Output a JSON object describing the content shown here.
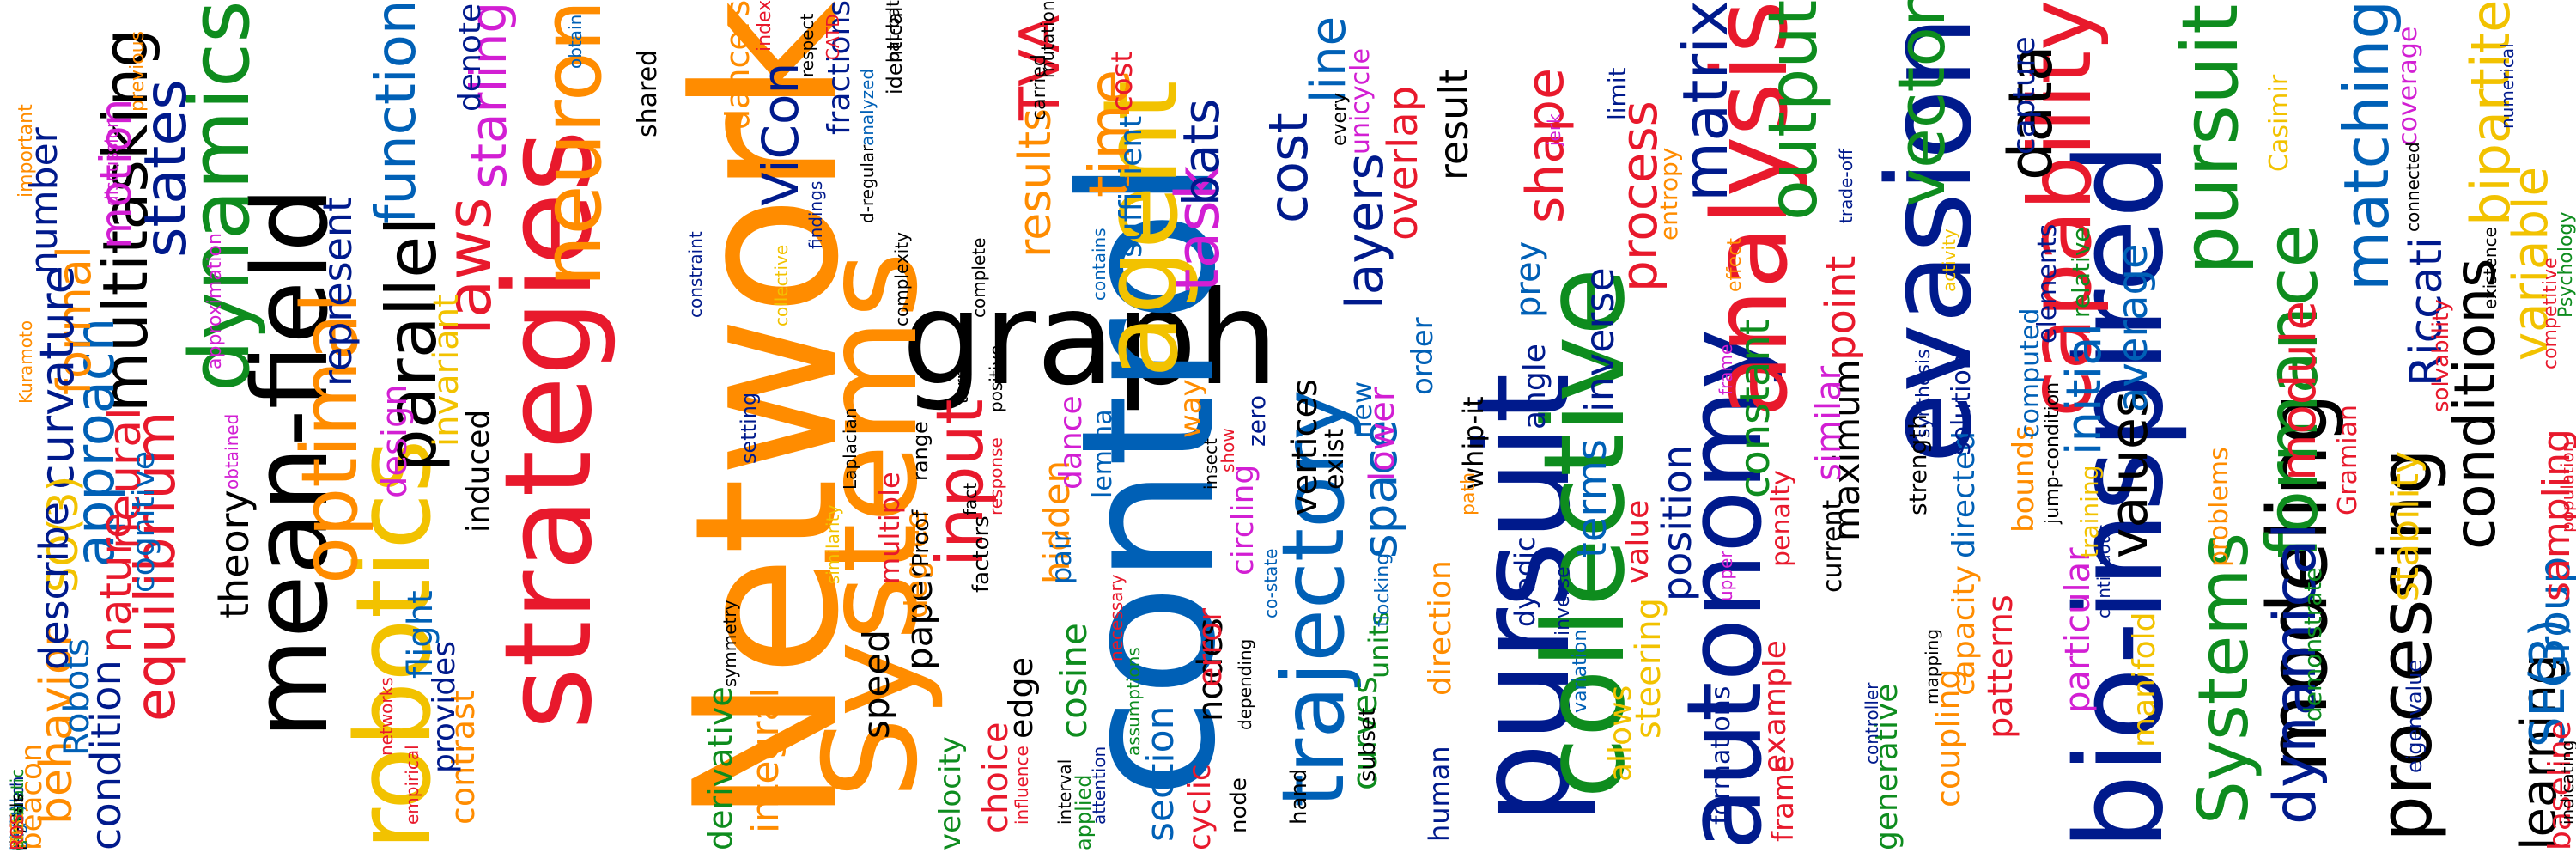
{
  "palette": {
    "black": "#000000",
    "navy": "#001a8c",
    "blue": "#0060b6",
    "green": "#0e8c1e",
    "red": "#e8192c",
    "orange": "#ff8c00",
    "yellow": "#f2c200",
    "magenta": "#d21fd3"
  },
  "words": [
    {
      "text": "Network",
      "color": "orange"
    },
    {
      "text": "graph",
      "color": "black"
    },
    {
      "text": "control",
      "color": "blue"
    },
    {
      "text": "Systems",
      "color": "orange"
    },
    {
      "text": "evasion",
      "color": "navy"
    },
    {
      "text": "pursuit",
      "color": "navy"
    },
    {
      "text": "collective",
      "color": "green"
    },
    {
      "text": "strategies",
      "color": "red"
    },
    {
      "text": "robotics",
      "color": "yellow"
    },
    {
      "text": "mean-field",
      "color": "black"
    },
    {
      "text": "bio-inspired",
      "color": "navy"
    },
    {
      "text": "autonomy",
      "color": "navy"
    },
    {
      "text": "trajectory",
      "color": "blue"
    },
    {
      "text": "agent",
      "color": "yellow"
    },
    {
      "text": "analysis",
      "color": "red"
    },
    {
      "text": "capability",
      "color": "red"
    },
    {
      "text": "dynamics",
      "color": "green"
    },
    {
      "text": "neuron",
      "color": "orange"
    },
    {
      "text": "modeling",
      "color": "black"
    },
    {
      "text": "processing",
      "color": "black"
    },
    {
      "text": "optimal",
      "color": "orange"
    },
    {
      "text": "parallel",
      "color": "black"
    },
    {
      "text": "multitasking",
      "color": "black"
    },
    {
      "text": "states",
      "color": "navy"
    },
    {
      "text": "approach",
      "color": "blue"
    },
    {
      "text": "equilibrium",
      "color": "red"
    },
    {
      "text": "laws",
      "color": "red"
    },
    {
      "text": "input",
      "color": "red"
    },
    {
      "text": "task",
      "color": "magenta"
    },
    {
      "text": "matrix",
      "color": "navy"
    },
    {
      "text": "output",
      "color": "green"
    },
    {
      "text": "vector",
      "color": "green"
    },
    {
      "text": "data",
      "color": "black"
    },
    {
      "text": "pursuit",
      "color": "green"
    },
    {
      "text": "formance",
      "color": "green"
    },
    {
      "text": "matching",
      "color": "blue"
    },
    {
      "text": "bipartite",
      "color": "yellow"
    },
    {
      "text": "variable",
      "color": "yellow"
    },
    {
      "text": "conditions",
      "color": "black"
    },
    {
      "text": "Riccati",
      "color": "navy"
    },
    {
      "text": "module",
      "color": "red"
    },
    {
      "text": "Systems",
      "color": "green"
    },
    {
      "text": "dynamical",
      "color": "navy"
    },
    {
      "text": "learning",
      "color": "black"
    },
    {
      "text": "Group",
      "color": "blue"
    },
    {
      "text": "SE(3)",
      "color": "blue"
    },
    {
      "text": "sampling",
      "color": "red"
    },
    {
      "text": "baseline",
      "color": "red"
    },
    {
      "text": "stability",
      "color": "yellow"
    },
    {
      "text": "values",
      "color": "black"
    },
    {
      "text": "initial",
      "color": "blue"
    },
    {
      "text": "average",
      "color": "blue"
    },
    {
      "text": "maximum",
      "color": "black"
    },
    {
      "text": "cost",
      "color": "navy"
    },
    {
      "text": "time",
      "color": "orange"
    },
    {
      "text": "results",
      "color": "orange"
    },
    {
      "text": "ViCon",
      "color": "navy"
    },
    {
      "text": "TVA",
      "color": "red"
    },
    {
      "text": "bats",
      "color": "navy"
    },
    {
      "text": "line",
      "color": "blue"
    },
    {
      "text": "layers",
      "color": "navy"
    },
    {
      "text": "space",
      "color": "blue"
    },
    {
      "text": "terms",
      "color": "blue"
    },
    {
      "text": "inverse",
      "color": "navy"
    },
    {
      "text": "position",
      "color": "navy"
    },
    {
      "text": "constant",
      "color": "green"
    },
    {
      "text": "point",
      "color": "red"
    },
    {
      "text": "shape",
      "color": "red"
    },
    {
      "text": "process",
      "color": "red"
    },
    {
      "text": "overlap",
      "color": "red"
    },
    {
      "text": "similar",
      "color": "magenta"
    },
    {
      "text": "particular",
      "color": "magenta"
    },
    {
      "text": "patterns",
      "color": "red"
    },
    {
      "text": "coupling",
      "color": "orange"
    },
    {
      "text": "manifold",
      "color": "yellow"
    },
    {
      "text": "directed",
      "color": "blue"
    },
    {
      "text": "capacity",
      "color": "orange"
    },
    {
      "text": "example",
      "color": "red"
    },
    {
      "text": "steering",
      "color": "yellow"
    },
    {
      "text": "frame",
      "color": "red"
    },
    {
      "text": "formations",
      "color": "navy"
    },
    {
      "text": "generative",
      "color": "green"
    },
    {
      "text": "function",
      "color": "blue"
    },
    {
      "text": "starling",
      "color": "magenta"
    },
    {
      "text": "motion",
      "color": "magenta"
    },
    {
      "text": "formal",
      "color": "orange"
    },
    {
      "text": "number",
      "color": "navy"
    },
    {
      "text": "curvature",
      "color": "navy"
    },
    {
      "text": "SO(3)",
      "color": "yellow"
    },
    {
      "text": "neural",
      "color": "red"
    },
    {
      "text": "nature",
      "color": "red"
    },
    {
      "text": "theory",
      "color": "black"
    },
    {
      "text": "condition",
      "color": "navy"
    },
    {
      "text": "behavior",
      "color": "orange"
    },
    {
      "text": "contrast",
      "color": "orange"
    },
    {
      "text": "describe",
      "color": "navy"
    },
    {
      "text": "Robots",
      "color": "blue"
    },
    {
      "text": "beacon",
      "color": "orange"
    },
    {
      "text": "cognitive",
      "color": "blue"
    },
    {
      "text": "represent",
      "color": "navy"
    },
    {
      "text": "flight",
      "color": "blue"
    },
    {
      "text": "design",
      "color": "magenta"
    },
    {
      "text": "invariant",
      "color": "yellow"
    },
    {
      "text": "induced",
      "color": "black"
    },
    {
      "text": "provides",
      "color": "navy"
    },
    {
      "text": "derivative",
      "color": "green"
    },
    {
      "text": "integral",
      "color": "orange"
    },
    {
      "text": "speed",
      "color": "black"
    },
    {
      "text": "paper",
      "color": "black"
    },
    {
      "text": "degree",
      "color": "orange"
    },
    {
      "text": "hidden",
      "color": "orange"
    },
    {
      "text": "cosine",
      "color": "green"
    },
    {
      "text": "choice",
      "color": "red"
    },
    {
      "text": "edge",
      "color": "black"
    },
    {
      "text": "section",
      "color": "blue"
    },
    {
      "text": "cyclic",
      "color": "red"
    },
    {
      "text": "curves",
      "color": "green"
    },
    {
      "text": "nodes",
      "color": "black"
    },
    {
      "text": "vertices",
      "color": "black"
    },
    {
      "text": "error",
      "color": "red"
    },
    {
      "text": "lower",
      "color": "magenta"
    },
    {
      "text": "value",
      "color": "red"
    },
    {
      "text": "direction",
      "color": "orange"
    },
    {
      "text": "circling",
      "color": "magenta"
    },
    {
      "text": "units",
      "color": "green"
    },
    {
      "text": "human",
      "color": "navy"
    },
    {
      "text": "allows",
      "color": "yellow"
    },
    {
      "text": "dyadic",
      "color": "navy"
    },
    {
      "text": "angle",
      "color": "navy"
    },
    {
      "text": "prey",
      "color": "blue"
    },
    {
      "text": "whip-it",
      "color": "black"
    },
    {
      "text": "result",
      "color": "black"
    },
    {
      "text": "unicycle",
      "color": "magenta"
    },
    {
      "text": "cost",
      "color": "red"
    },
    {
      "text": "dancers",
      "color": "orange"
    },
    {
      "text": "denote",
      "color": "navy"
    },
    {
      "text": "shared",
      "color": "black"
    },
    {
      "text": "fractions",
      "color": "navy"
    },
    {
      "text": "sufficient",
      "color": "blue"
    },
    {
      "text": "dance",
      "color": "magenta"
    },
    {
      "text": "lemma",
      "color": "blue"
    },
    {
      "text": "pair",
      "color": "blue"
    },
    {
      "text": "Proof",
      "color": "black"
    },
    {
      "text": "range",
      "color": "black"
    },
    {
      "text": "setting",
      "color": "navy"
    },
    {
      "text": "factors",
      "color": "black"
    },
    {
      "text": "multiple",
      "color": "red"
    },
    {
      "text": "zero",
      "color": "navy"
    },
    {
      "text": "order",
      "color": "blue"
    },
    {
      "text": "new",
      "color": "blue"
    },
    {
      "text": "way",
      "color": "orange"
    },
    {
      "text": "exist",
      "color": "black"
    },
    {
      "text": "subset",
      "color": "black"
    },
    {
      "text": "hand",
      "color": "black"
    },
    {
      "text": "node",
      "color": "black"
    },
    {
      "text": "applied",
      "color": "green"
    },
    {
      "text": "velocity",
      "color": "green"
    },
    {
      "text": "capture",
      "color": "navy"
    },
    {
      "text": "limit",
      "color": "navy"
    },
    {
      "text": "entropy",
      "color": "orange"
    },
    {
      "text": "penalty",
      "color": "red"
    },
    {
      "text": "current",
      "color": "black"
    },
    {
      "text": "strength",
      "color": "black"
    },
    {
      "text": "solution",
      "color": "navy"
    },
    {
      "text": "bounds",
      "color": "orange"
    },
    {
      "text": "computed",
      "color": "blue"
    },
    {
      "text": "elements",
      "color": "navy"
    },
    {
      "text": "relative",
      "color": "green"
    },
    {
      "text": "problems",
      "color": "orange"
    },
    {
      "text": "Gramian",
      "color": "red"
    },
    {
      "text": "demonstrate",
      "color": "green"
    },
    {
      "text": "training",
      "color": "yellow"
    },
    {
      "text": "Casimir",
      "color": "yellow"
    },
    {
      "text": "coverage",
      "color": "magenta"
    },
    {
      "text": "solvability",
      "color": "red"
    },
    {
      "text": "competitive",
      "color": "red"
    },
    {
      "text": "Psychology",
      "color": "green"
    },
    {
      "text": "eigenvalue",
      "color": "navy"
    },
    {
      "text": "indicating",
      "color": "black"
    },
    {
      "text": "population",
      "color": "red"
    },
    {
      "text": "numerical",
      "color": "navy"
    },
    {
      "text": "existence",
      "color": "black"
    },
    {
      "text": "connected",
      "color": "black"
    },
    {
      "text": "jump-condition",
      "color": "black"
    },
    {
      "text": "continuous",
      "color": "navy"
    },
    {
      "text": "controller",
      "color": "navy"
    },
    {
      "text": "synthesis",
      "color": "navy"
    },
    {
      "text": "mapping",
      "color": "black"
    },
    {
      "text": "activity",
      "color": "yellow"
    },
    {
      "text": "trade-off",
      "color": "navy"
    },
    {
      "text": "effect",
      "color": "orange"
    },
    {
      "text": "upper",
      "color": "magenta"
    },
    {
      "text": "frame",
      "color": "magenta"
    },
    {
      "text": "path",
      "color": "orange"
    },
    {
      "text": "inverse",
      "color": "navy"
    },
    {
      "text": "show",
      "color": "red"
    },
    {
      "text": "every",
      "color": "black"
    },
    {
      "text": "jerk",
      "color": "magenta"
    },
    {
      "text": "insect",
      "color": "black"
    },
    {
      "text": "response",
      "color": "red"
    },
    {
      "text": "fact",
      "color": "black"
    },
    {
      "text": "turn",
      "color": "black"
    },
    {
      "text": "positive",
      "color": "black"
    },
    {
      "text": "carried",
      "color": "black"
    },
    {
      "text": "mutation",
      "color": "black"
    },
    {
      "text": "identical",
      "color": "black"
    },
    {
      "text": "respect",
      "color": "black"
    },
    {
      "text": "index",
      "color": "red"
    },
    {
      "text": "bat-bat",
      "color": "black"
    },
    {
      "text": "CATD",
      "color": "red"
    },
    {
      "text": "obtain",
      "color": "blue"
    },
    {
      "text": "analyzed",
      "color": "blue"
    },
    {
      "text": "previous",
      "color": "orange"
    },
    {
      "text": "discussion",
      "color": "magenta"
    },
    {
      "text": "important",
      "color": "orange"
    },
    {
      "text": "Kuramoto",
      "color": "orange"
    },
    {
      "text": "approximation",
      "color": "magenta"
    },
    {
      "text": "obtained",
      "color": "magenta"
    },
    {
      "text": "networks",
      "color": "red"
    },
    {
      "text": "empirical",
      "color": "red"
    },
    {
      "text": "symmetry",
      "color": "black"
    },
    {
      "text": "similarity",
      "color": "yellow"
    },
    {
      "text": "Laplacian",
      "color": "black"
    },
    {
      "text": "collective",
      "color": "yellow"
    },
    {
      "text": "constraint",
      "color": "navy"
    },
    {
      "text": "findings",
      "color": "navy"
    },
    {
      "text": "d-regular",
      "color": "black"
    },
    {
      "text": "complexity",
      "color": "black"
    },
    {
      "text": "complete",
      "color": "black"
    },
    {
      "text": "contains",
      "color": "blue"
    },
    {
      "text": "influence",
      "color": "red"
    },
    {
      "text": "interval",
      "color": "black"
    },
    {
      "text": "attention",
      "color": "navy"
    },
    {
      "text": "necessary",
      "color": "red"
    },
    {
      "text": "assumptions",
      "color": "green"
    },
    {
      "text": "co-state",
      "color": "blue"
    },
    {
      "text": "depending",
      "color": "black"
    },
    {
      "text": "flocking",
      "color": "blue"
    },
    {
      "text": "variation",
      "color": "blue"
    },
    {
      "text": "global",
      "color": "blue"
    },
    {
      "text": "research",
      "color": "navy"
    },
    {
      "text": "pursuer",
      "color": "navy"
    },
    {
      "text": "quadratic",
      "color": "green"
    },
    {
      "text": "least",
      "color": "green"
    },
    {
      "text": "planar",
      "color": "black"
    },
    {
      "text": "dual",
      "color": "black"
    },
    {
      "text": "equals",
      "color": "black"
    },
    {
      "text": "SE(2)",
      "color": "blue"
    },
    {
      "text": "high",
      "color": "blue"
    },
    {
      "text": "unit",
      "color": "red"
    },
    {
      "text": "IEEE",
      "color": "yellow"
    },
    {
      "text": "cross",
      "color": "green"
    },
    {
      "text": "MIS",
      "color": "orange"
    },
    {
      "text": "ROS",
      "color": "red"
    }
  ]
}
